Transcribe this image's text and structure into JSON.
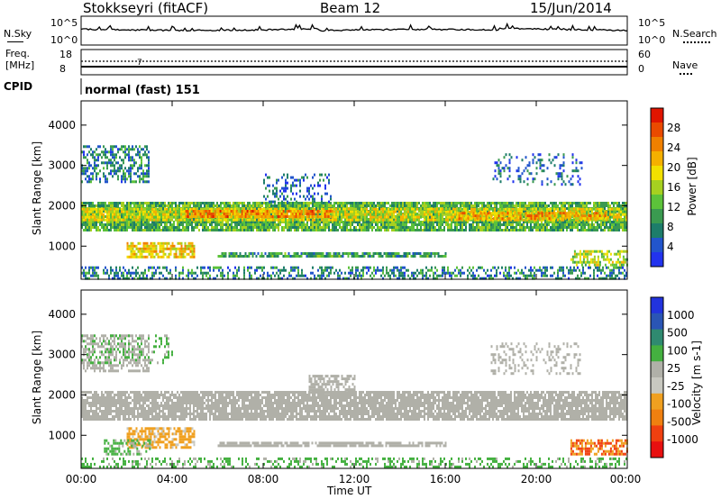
{
  "header": {
    "station": "Stokkseyri (fitACF)",
    "beam": "Beam 12",
    "date": "15/Jun/2014"
  },
  "panels": {
    "nsky": {
      "left_label": "N.Sky",
      "left_ticks": [
        "10^5",
        "10^0"
      ],
      "right_label": "N.Search",
      "right_ticks": [
        "10^5",
        "10^0"
      ]
    },
    "freq": {
      "left_label_1": "Freq.",
      "left_label_2": "[MHz]",
      "left_ticks": [
        "18",
        "8"
      ],
      "right_label": "Nave",
      "right_ticks": [
        "60",
        "0"
      ],
      "marker": "7"
    },
    "cpid": {
      "label": "CPID",
      "mode": "normal (fast) 151"
    }
  },
  "axes": {
    "ylabel": "Slant Range [km]",
    "y_ticks": [
      "4000",
      "3000",
      "2000",
      "1000"
    ],
    "x_ticks": [
      "00:00",
      "04:00",
      "08:00",
      "12:00",
      "16:00",
      "20:00",
      "00:00"
    ],
    "xlabel": "Time UT"
  },
  "colorbars": {
    "power": {
      "label": "Power [dB]",
      "ticks": [
        "28",
        "24",
        "20",
        "16",
        "12",
        "8",
        "4"
      ],
      "colors": [
        "#2233ee",
        "#2255cc",
        "#1d7d6a",
        "#3a9a50",
        "#5cc23a",
        "#a6d020",
        "#f2e000",
        "#f5b000",
        "#f08000",
        "#ea4a00",
        "#e01500"
      ]
    },
    "velocity": {
      "label": "Velocity [m s-1]",
      "ticks": [
        "1000",
        "500",
        "100",
        "25",
        "-25",
        "-100",
        "-500",
        "-1000"
      ],
      "colors": [
        "#2233dd",
        "#2a55b5",
        "#2f8a70",
        "#44b040",
        "#b0b0a8",
        "#c8c8c0",
        "#f0a020",
        "#f08010",
        "#f04010",
        "#e81010"
      ]
    }
  },
  "chart_data": [
    {
      "type": "heatmap",
      "name": "Power",
      "x_range": [
        "00:00",
        "24:00"
      ],
      "ylim": [
        180,
        4600
      ],
      "ylabel": "Slant Range [km]",
      "xlabel": "Time UT",
      "bands": [
        {
          "t0": 0.0,
          "t1": 24.0,
          "r0": 1400,
          "r1": 2100,
          "level": 12,
          "dens": 0.9
        },
        {
          "t0": 0.0,
          "t1": 24.0,
          "r0": 1650,
          "r1": 1950,
          "level": 18,
          "dens": 0.85
        },
        {
          "t0": 4.5,
          "t1": 11.0,
          "r0": 1720,
          "r1": 1900,
          "level": 24,
          "dens": 0.8
        },
        {
          "t0": 16.5,
          "t1": 23.0,
          "r0": 1650,
          "r1": 1850,
          "level": 22,
          "dens": 0.7
        },
        {
          "t0": 0.0,
          "t1": 3.0,
          "r0": 2600,
          "r1": 3500,
          "level": 8,
          "dens": 0.5
        },
        {
          "t0": 2.0,
          "t1": 5.0,
          "r0": 700,
          "r1": 1100,
          "level": 20,
          "dens": 0.7
        },
        {
          "t0": 0.0,
          "t1": 24.0,
          "r0": 200,
          "r1": 500,
          "level": 8,
          "dens": 0.45
        },
        {
          "t0": 6.0,
          "t1": 16.0,
          "r0": 750,
          "r1": 850,
          "level": 10,
          "dens": 0.8
        },
        {
          "t0": 21.5,
          "t1": 24.0,
          "r0": 500,
          "r1": 900,
          "level": 16,
          "dens": 0.6
        },
        {
          "t0": 18.0,
          "t1": 22.0,
          "r0": 2500,
          "r1": 3300,
          "level": 6,
          "dens": 0.25
        },
        {
          "t0": 8.0,
          "t1": 11.0,
          "r0": 2100,
          "r1": 2800,
          "level": 6,
          "dens": 0.3
        }
      ]
    },
    {
      "type": "heatmap",
      "name": "Velocity",
      "x_range": [
        "00:00",
        "24:00"
      ],
      "ylim": [
        180,
        4600
      ],
      "ylabel": "Slant Range [km]",
      "xlabel": "Time UT",
      "bands": [
        {
          "t0": 0.0,
          "t1": 24.0,
          "r0": 1400,
          "r1": 2100,
          "vel": 0,
          "dens": 0.85
        },
        {
          "t0": 10.0,
          "t1": 12.0,
          "r0": 2000,
          "r1": 2500,
          "vel": 0,
          "dens": 0.6
        },
        {
          "t0": 0.0,
          "t1": 3.0,
          "r0": 2600,
          "r1": 3500,
          "vel": 0,
          "dens": 0.5
        },
        {
          "t0": 0.0,
          "t1": 4.0,
          "r0": 2800,
          "r1": 3500,
          "vel": 100,
          "dens": 0.25
        },
        {
          "t0": 2.0,
          "t1": 5.0,
          "r0": 700,
          "r1": 1200,
          "vel": -100,
          "dens": 0.65
        },
        {
          "t0": 1.0,
          "t1": 3.0,
          "r0": 500,
          "r1": 900,
          "vel": 100,
          "dens": 0.45
        },
        {
          "t0": 6.0,
          "t1": 16.0,
          "r0": 760,
          "r1": 840,
          "vel": 0,
          "dens": 0.8
        },
        {
          "t0": 0.0,
          "t1": 24.0,
          "r0": 200,
          "r1": 450,
          "vel": 100,
          "dens": 0.35
        },
        {
          "t0": 21.5,
          "t1": 24.0,
          "r0": 500,
          "r1": 900,
          "vel": -300,
          "dens": 0.65
        },
        {
          "t0": 18.0,
          "t1": 22.0,
          "r0": 2500,
          "r1": 3300,
          "vel": 0,
          "dens": 0.25
        }
      ]
    }
  ]
}
